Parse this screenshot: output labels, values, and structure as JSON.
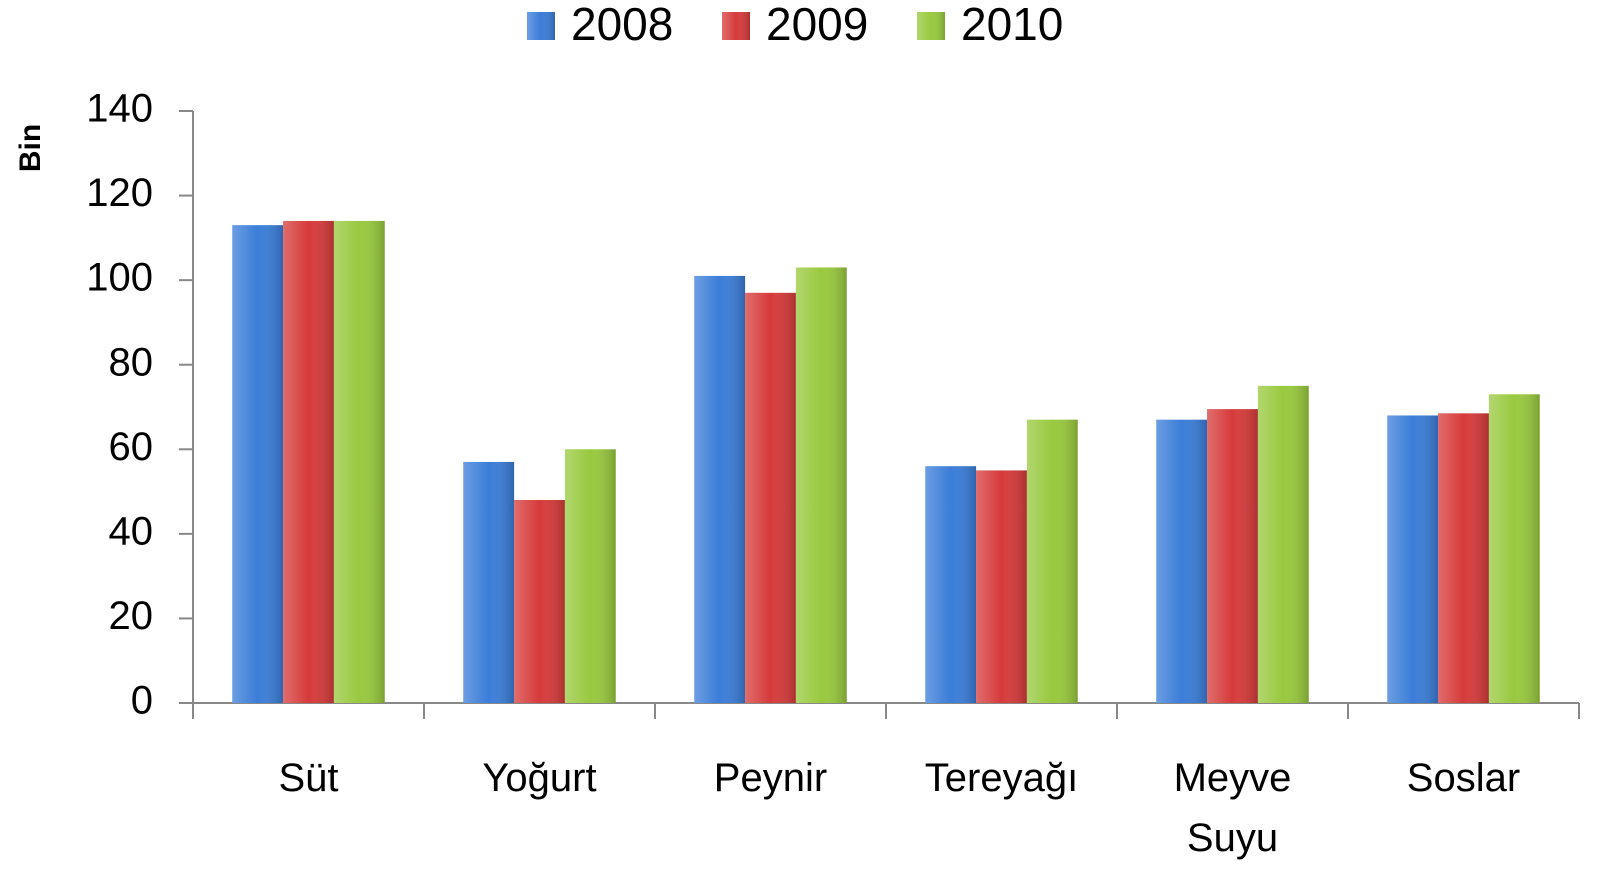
{
  "chart_data": {
    "type": "bar",
    "y_label": "Bin",
    "categories": [
      "Süt",
      "Yoğurt",
      "Peynir",
      "Tereyağı",
      "Meyve Suyu",
      "Soslar"
    ],
    "series": [
      {
        "name": "2008",
        "color": "#3b7dd8",
        "values": [
          113,
          57,
          101,
          56,
          67,
          68
        ]
      },
      {
        "name": "2009",
        "color": "#d63b3b",
        "values": [
          114,
          48,
          97,
          55,
          69.5,
          68.5
        ]
      },
      {
        "name": "2010",
        "color": "#98c93e",
        "values": [
          114,
          60,
          103,
          67,
          75,
          73
        ]
      }
    ],
    "ylim": [
      0,
      140
    ],
    "yticks": [
      0,
      20,
      40,
      60,
      80,
      100,
      120,
      140
    ],
    "grid": false,
    "legend": "top"
  }
}
